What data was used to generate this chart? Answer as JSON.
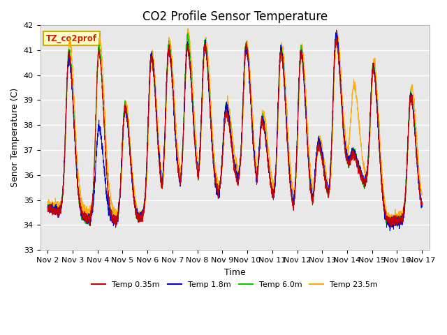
{
  "title": "CO2 Profile Sensor Temperature",
  "ylabel": "Senor Temperature (C)",
  "xlabel": "Time",
  "ylim": [
    33.0,
    42.0
  ],
  "yticks": [
    33.0,
    34.0,
    35.0,
    36.0,
    37.0,
    38.0,
    39.0,
    40.0,
    41.0,
    42.0
  ],
  "xtick_labels": [
    "Nov 2",
    "Nov 3",
    "Nov 4",
    "Nov 5",
    "Nov 6",
    "Nov 7",
    "Nov 8",
    "Nov 9",
    "Nov 10",
    "Nov 11",
    "Nov 12",
    "Nov 13",
    "Nov 14",
    "Nov 15",
    "Nov 16",
    "Nov 17"
  ],
  "legend_title": "TZ_co2prof",
  "legend_entries": [
    "Temp 0.35m",
    "Temp 1.8m",
    "Temp 6.0m",
    "Temp 23.5m"
  ],
  "line_colors": [
    "#cc0000",
    "#0000cc",
    "#00cc00",
    "#ffaa00"
  ],
  "legend_title_color": "#cc2200",
  "legend_box_edge_color": "#ccaa00",
  "legend_box_face_color": "#ffffcc",
  "background_color": "#e8e8e8",
  "fig_background": "#ffffff",
  "grid_color": "#ffffff",
  "title_fontsize": 12,
  "axis_label_fontsize": 9,
  "tick_fontsize": 8
}
